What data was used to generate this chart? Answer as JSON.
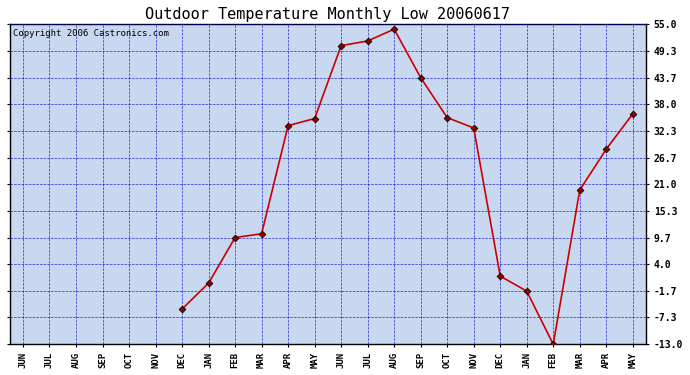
{
  "title": "Outdoor Temperature Monthly Low 20060617",
  "copyright": "Copyright 2006 Castronics.com",
  "x_labels": [
    "JUN",
    "JUL",
    "AUG",
    "SEP",
    "OCT",
    "NOV",
    "DEC",
    "JAN",
    "FEB",
    "MAR",
    "APR",
    "MAY",
    "JUN",
    "JUL",
    "AUG",
    "SEP",
    "OCT",
    "NOV",
    "DEC",
    "JAN",
    "FEB",
    "MAR",
    "APR",
    "MAY"
  ],
  "y_values": [
    null,
    null,
    null,
    null,
    null,
    null,
    -5.5,
    0.0,
    9.7,
    10.5,
    33.5,
    35.0,
    50.5,
    51.5,
    54.0,
    43.7,
    35.2,
    33.0,
    1.5,
    -1.7,
    -13.0,
    19.8,
    28.5,
    36.0
  ],
  "yticks": [
    55.0,
    49.3,
    43.7,
    38.0,
    32.3,
    26.7,
    21.0,
    15.3,
    9.7,
    4.0,
    -1.7,
    -7.3,
    -13.0
  ],
  "ymin": -13.0,
  "ymax": 55.0,
  "line_color": "#cc0000",
  "marker_color": "#880000",
  "grid_color": "#0000bb",
  "plot_bg": "#c8d8f0",
  "fig_bg": "#ffffff",
  "title_fontsize": 11,
  "copyright_fontsize": 6.5
}
